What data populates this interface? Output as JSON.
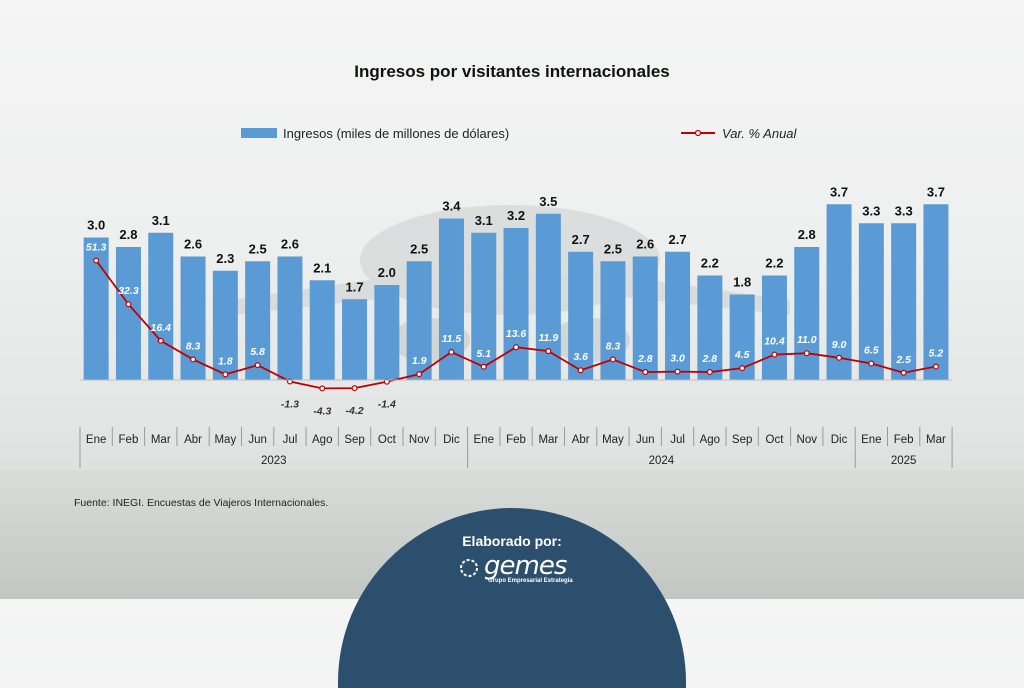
{
  "chart_data": {
    "type": "bar",
    "title": "Ingresos por visitantes internacionales",
    "legend": {
      "placement": "top"
    },
    "categories": [
      "Ene",
      "Feb",
      "Mar",
      "Abr",
      "May",
      "Jun",
      "Jul",
      "Ago",
      "Sep",
      "Oct",
      "Nov",
      "Dic",
      "Ene",
      "Feb",
      "Mar",
      "Abr",
      "May",
      "Jun",
      "Jul",
      "Ago",
      "Sep",
      "Oct",
      "Nov",
      "Dic",
      "Ene",
      "Feb",
      "Mar"
    ],
    "years": [
      {
        "label": "2023",
        "start": 0,
        "count": 12
      },
      {
        "label": "2024",
        "start": 12,
        "count": 12
      },
      {
        "label": "2025",
        "start": 24,
        "count": 3
      }
    ],
    "series": [
      {
        "name": "Ingresos (miles de millones de dólares)",
        "type": "bar",
        "color": "#5b9bd5",
        "values": [
          3.0,
          2.8,
          3.1,
          2.6,
          2.3,
          2.5,
          2.6,
          2.1,
          1.7,
          2.0,
          2.5,
          3.4,
          3.1,
          3.2,
          3.5,
          2.7,
          2.5,
          2.6,
          2.7,
          2.2,
          1.8,
          2.2,
          2.8,
          3.7,
          3.3,
          3.3,
          3.7
        ],
        "labels": [
          "3.0",
          "2.8",
          "3.1",
          "2.6",
          "2.3",
          "2.5",
          "2.6",
          "2.1",
          "1.7",
          "2.0",
          "2.5",
          "3.4",
          "3.1",
          "3.2",
          "3.5",
          "2.7",
          "2.5",
          "2.6",
          "2.7",
          "2.2",
          "1.8",
          "2.2",
          "2.8",
          "3.7",
          "3.3",
          "3.3",
          "3.7"
        ]
      },
      {
        "name": "Var. % Anual",
        "type": "line",
        "color": "#c00000",
        "values": [
          51.3,
          32.3,
          16.4,
          8.3,
          1.8,
          5.8,
          -1.3,
          -4.3,
          -4.2,
          -1.4,
          1.9,
          11.5,
          5.1,
          13.6,
          11.9,
          3.6,
          8.3,
          2.8,
          3.0,
          2.8,
          4.5,
          10.4,
          11.0,
          9.0,
          6.5,
          2.5,
          5.2
        ],
        "labels": [
          "51.3",
          "32.3",
          "16.4",
          "8.3",
          "1.8",
          "5.8",
          "-1.3",
          "-4.3",
          "-4.2",
          "-1.4",
          "1.9",
          "11.5",
          "5.1",
          "13.6",
          "11.9",
          "3.6",
          "8.3",
          "2.8",
          "3.0",
          "2.8",
          "4.5",
          "10.4",
          "11.0",
          "9.0",
          "6.5",
          "2.5",
          "5.2"
        ]
      }
    ],
    "colors": {
      "bar": "#5b9bd5",
      "line": "#c00000",
      "inner_label": "#ffffff",
      "top_label": "#111111",
      "negative_label": "#333333"
    }
  },
  "source": "Fuente: INEGI. Encuestas de Viajeros Internacionales.",
  "footer": {
    "label": "Elaborado por:",
    "logo_text": "gemes",
    "logo_sub": "Grupo Empresarial Estrategia",
    "color": "#2c4f6e"
  }
}
